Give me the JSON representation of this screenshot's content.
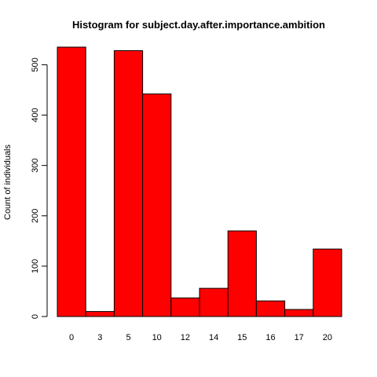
{
  "chart_data": {
    "type": "bar",
    "title": "Histogram for subject.day.after.importance.ambition",
    "xlabel": "",
    "ylabel": "Count of individuals",
    "categories": [
      "0",
      "3",
      "5",
      "10",
      "12",
      "14",
      "15",
      "16",
      "17",
      "20"
    ],
    "values": [
      535,
      10,
      528,
      442,
      37,
      56,
      170,
      31,
      14,
      134
    ],
    "ylim": [
      0,
      535
    ],
    "yticks": [
      "0",
      "100",
      "200",
      "300",
      "400",
      "500"
    ],
    "ytick_values": [
      0,
      100,
      200,
      300,
      400,
      500
    ],
    "bar_color": "#ff0000",
    "bar_border_color": "#000000",
    "grid": false
  }
}
